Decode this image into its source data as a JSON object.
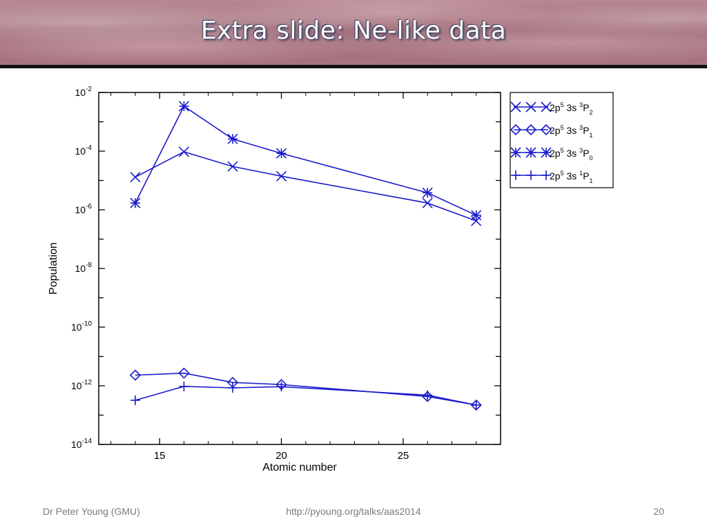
{
  "slide": {
    "title": "Extra slide: Ne-like data",
    "footer_author": "Dr Peter Young (GMU)",
    "footer_url": "http://pyoung.org/talks/aas2014",
    "page_number": "20"
  },
  "chart_data": {
    "type": "line",
    "title": "",
    "xlabel": "Atomic number",
    "ylabel": "Population",
    "xlim": [
      12.5,
      29
    ],
    "ylim_log10": [
      -14,
      -2
    ],
    "yscale": "log",
    "x_ticks": [
      15,
      20,
      25
    ],
    "y_ticks": [
      {
        "exp": -2,
        "label": "10",
        "sup": "-2"
      },
      {
        "exp": -4,
        "label": "10",
        "sup": "-4"
      },
      {
        "exp": -6,
        "label": "10",
        "sup": "-6"
      },
      {
        "exp": -8,
        "label": "10",
        "sup": "-8"
      },
      {
        "exp": -10,
        "label": "10",
        "sup": "-10"
      },
      {
        "exp": -12,
        "label": "10",
        "sup": "-12"
      },
      {
        "exp": -14,
        "label": "10",
        "sup": "-14"
      }
    ],
    "line_color": "#1a1acc",
    "legend_position": "outside-top-right",
    "series": [
      {
        "config": "2p",
        "config_sup": "5",
        "shell": " 3s ",
        "term_sup": "3",
        "term": "P",
        "term_sub": "2",
        "marker": "x",
        "x": [
          14,
          16,
          18,
          20,
          26,
          28
        ],
        "y": [
          1.3e-05,
          9.5e-05,
          3e-05,
          1.4e-05,
          1.7e-06,
          4.2e-07
        ]
      },
      {
        "config": "2p",
        "config_sup": "5",
        "shell": " 3s ",
        "term_sup": "3",
        "term": "P",
        "term_sub": "1",
        "marker": "diamond",
        "x": [
          14,
          16,
          18,
          20,
          26,
          28
        ],
        "y": [
          2.3e-12,
          2.7e-12,
          1.3e-12,
          1.1e-12,
          4.3e-13,
          2.2e-13
        ]
      },
      {
        "config": "2p",
        "config_sup": "5",
        "shell": " 3s ",
        "term_sup": "3",
        "term": "P",
        "term_sub": "0",
        "marker": "star",
        "x": [
          14,
          16,
          18,
          20,
          26,
          28
        ],
        "y": [
          1.7e-06,
          0.0034,
          0.00026,
          8.4e-05,
          3.8e-06,
          6.5e-07
        ]
      },
      {
        "config": "2p",
        "config_sup": "5",
        "shell": " 3s ",
        "term_sup": "1",
        "term": "P",
        "term_sub": "1",
        "marker": "plus",
        "x": [
          14,
          16,
          18,
          20,
          26,
          28
        ],
        "y": [
          3.2e-13,
          9.5e-13,
          8.5e-13,
          9.3e-13,
          4.8e-13,
          2.2e-13
        ]
      }
    ]
  }
}
